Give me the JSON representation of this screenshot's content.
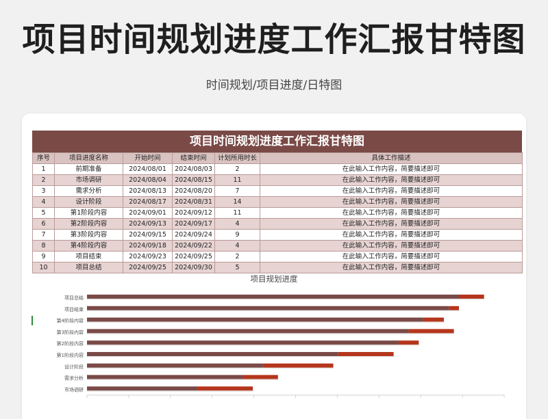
{
  "header": {
    "main_title": "项目时间规划进度工作汇报甘特图",
    "subtitle": "时间规划/项目进度/日特图"
  },
  "sheet": {
    "title": "项目时间规划进度工作汇报甘特图",
    "columns": [
      "序号",
      "项目进度名称",
      "开始时间",
      "结束时间",
      "计划所用时长",
      "具体工作描述"
    ],
    "rows": [
      {
        "no": "1",
        "name": "前期准备",
        "start": "2024/08/01",
        "end": "2024/08/03",
        "duration": "2",
        "desc": "在此输入工作内容，简要描述即可"
      },
      {
        "no": "2",
        "name": "市场调研",
        "start": "2024/08/04",
        "end": "2024/08/15",
        "duration": "11",
        "desc": "在此输入工作内容，简要描述即可"
      },
      {
        "no": "3",
        "name": "需求分析",
        "start": "2024/08/13",
        "end": "2024/08/20",
        "duration": "7",
        "desc": "在此输入工作内容，简要描述即可"
      },
      {
        "no": "4",
        "name": "设计阶段",
        "start": "2024/08/17",
        "end": "2024/08/31",
        "duration": "14",
        "desc": "在此输入工作内容，简要描述即可"
      },
      {
        "no": "5",
        "name": "第1阶段内容",
        "start": "2024/09/01",
        "end": "2024/09/12",
        "duration": "11",
        "desc": "在此输入工作内容，简要描述即可"
      },
      {
        "no": "6",
        "name": "第2阶段内容",
        "start": "2024/09/13",
        "end": "2024/09/17",
        "duration": "4",
        "desc": "在此输入工作内容，简要描述即可"
      },
      {
        "no": "7",
        "name": "第3阶段内容",
        "start": "2024/09/15",
        "end": "2024/09/24",
        "duration": "9",
        "desc": "在此输入工作内容，简要描述即可"
      },
      {
        "no": "8",
        "name": "第4阶段内容",
        "start": "2024/09/18",
        "end": "2024/09/22",
        "duration": "4",
        "desc": "在此输入工作内容，简要描述即可"
      },
      {
        "no": "9",
        "name": "项目结束",
        "start": "2024/09/23",
        "end": "2024/09/25",
        "duration": "2",
        "desc": "在此输入工作内容，简要描述即可"
      },
      {
        "no": "10",
        "name": "项目总结",
        "start": "2024/09/25",
        "end": "2024/09/30",
        "duration": "5",
        "desc": "在此输入工作内容，简要描述即可"
      }
    ]
  },
  "colors": {
    "header_bar": "#7a4a47",
    "bar_start": "#7a4a47",
    "bar_duration": "#b5361c",
    "row_stripe": "#e6d3d2"
  },
  "chart_data": {
    "type": "bar",
    "orientation": "horizontal",
    "stacked": true,
    "title": "项目规划进度",
    "categories": [
      "项目总结",
      "项目结束",
      "第4阶段内容",
      "第3阶段内容",
      "第2阶段内容",
      "第1阶段内容",
      "设计阶段",
      "需求分析",
      "市场调研"
    ],
    "series": [
      {
        "values": [
          "2024/09/25",
          "2024/09/23",
          "2024/09/18",
          "2024/09/15",
          "2024/09/13",
          "2024/09/01",
          "2024/08/17",
          "2024/08/13",
          "2024/08/04"
        ]
      },
      {
        "values": [
          5,
          2,
          4,
          9,
          4,
          11,
          14,
          7,
          11
        ]
      }
    ],
    "xlim": [
      "2024/07/13",
      "2024/10/04"
    ],
    "grid": false,
    "legend": "none"
  }
}
